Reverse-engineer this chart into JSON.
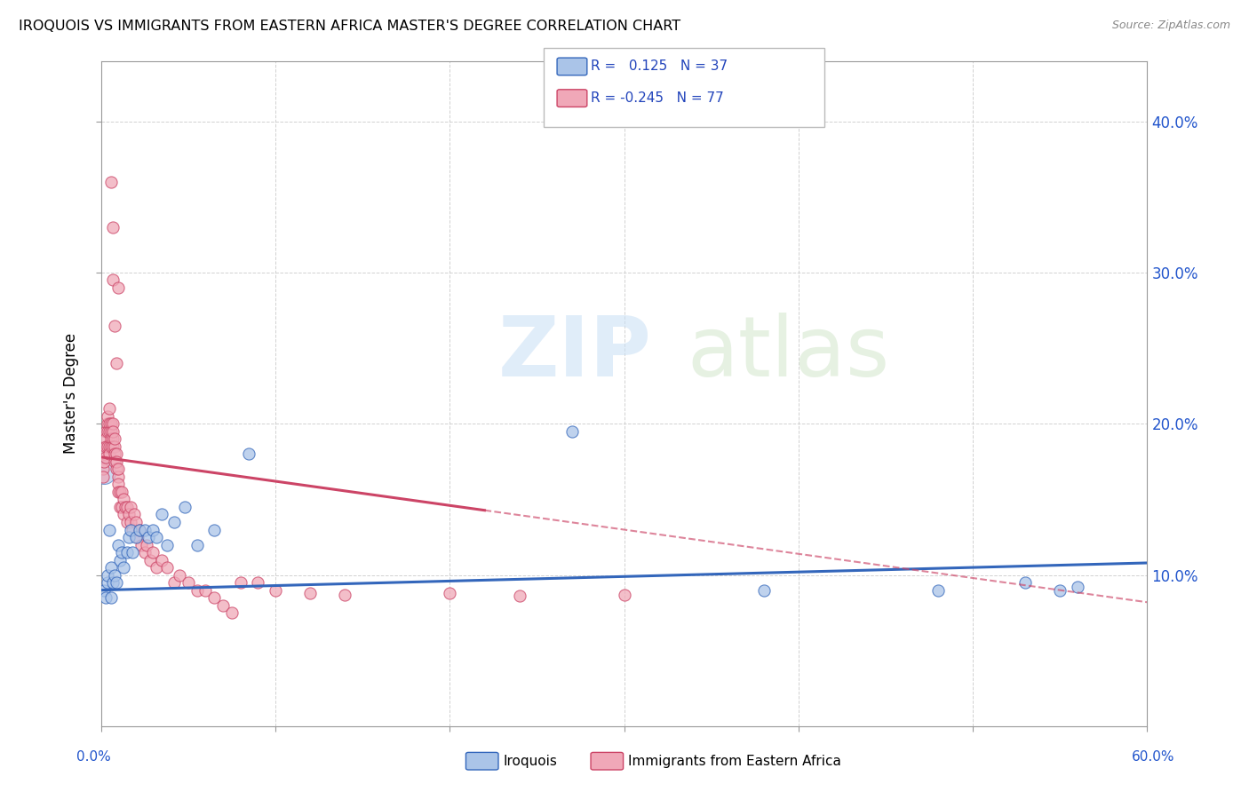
{
  "title": "IROQUOIS VS IMMIGRANTS FROM EASTERN AFRICA MASTER'S DEGREE CORRELATION CHART",
  "source": "Source: ZipAtlas.com",
  "ylabel": "Master's Degree",
  "right_yticks": [
    "10.0%",
    "20.0%",
    "30.0%",
    "40.0%"
  ],
  "right_ytick_vals": [
    0.1,
    0.2,
    0.3,
    0.4
  ],
  "xlim": [
    0.0,
    0.6
  ],
  "ylim": [
    0.0,
    0.44
  ],
  "blue_color": "#aac4e8",
  "pink_color": "#f0a8b8",
  "blue_line_color": "#3366bb",
  "pink_line_color": "#cc4466",
  "blue_scatter_x": [
    0.002,
    0.003,
    0.004,
    0.004,
    0.005,
    0.006,
    0.006,
    0.007,
    0.008,
    0.009,
    0.01,
    0.011,
    0.012,
    0.013,
    0.015,
    0.016,
    0.017,
    0.018,
    0.02,
    0.022,
    0.025,
    0.027,
    0.03,
    0.032,
    0.035,
    0.038,
    0.042,
    0.048,
    0.055,
    0.065,
    0.085,
    0.27,
    0.38,
    0.48,
    0.53,
    0.55,
    0.56
  ],
  "blue_scatter_y": [
    0.09,
    0.085,
    0.095,
    0.1,
    0.13,
    0.105,
    0.085,
    0.095,
    0.1,
    0.095,
    0.12,
    0.11,
    0.115,
    0.105,
    0.115,
    0.125,
    0.13,
    0.115,
    0.125,
    0.13,
    0.13,
    0.125,
    0.13,
    0.125,
    0.14,
    0.12,
    0.135,
    0.145,
    0.12,
    0.13,
    0.18,
    0.195,
    0.09,
    0.09,
    0.095,
    0.09,
    0.092
  ],
  "pink_scatter_x": [
    0.001,
    0.001,
    0.002,
    0.002,
    0.003,
    0.003,
    0.003,
    0.003,
    0.004,
    0.004,
    0.004,
    0.004,
    0.005,
    0.005,
    0.005,
    0.005,
    0.005,
    0.006,
    0.006,
    0.006,
    0.006,
    0.007,
    0.007,
    0.007,
    0.007,
    0.008,
    0.008,
    0.008,
    0.008,
    0.009,
    0.009,
    0.009,
    0.01,
    0.01,
    0.01,
    0.01,
    0.011,
    0.011,
    0.012,
    0.012,
    0.013,
    0.013,
    0.014,
    0.015,
    0.015,
    0.016,
    0.017,
    0.017,
    0.018,
    0.019,
    0.02,
    0.021,
    0.022,
    0.023,
    0.025,
    0.026,
    0.028,
    0.03,
    0.032,
    0.035,
    0.038,
    0.042,
    0.045,
    0.05,
    0.055,
    0.06,
    0.065,
    0.07,
    0.075,
    0.08,
    0.09,
    0.1,
    0.12,
    0.14,
    0.2,
    0.24,
    0.3
  ],
  "pink_scatter_y": [
    0.17,
    0.165,
    0.175,
    0.18,
    0.195,
    0.19,
    0.185,
    0.178,
    0.2,
    0.195,
    0.205,
    0.185,
    0.21,
    0.2,
    0.185,
    0.195,
    0.18,
    0.2,
    0.195,
    0.19,
    0.185,
    0.2,
    0.19,
    0.185,
    0.195,
    0.185,
    0.19,
    0.18,
    0.175,
    0.18,
    0.17,
    0.175,
    0.165,
    0.17,
    0.16,
    0.155,
    0.155,
    0.145,
    0.155,
    0.145,
    0.15,
    0.14,
    0.145,
    0.145,
    0.135,
    0.14,
    0.135,
    0.145,
    0.13,
    0.14,
    0.135,
    0.125,
    0.13,
    0.12,
    0.115,
    0.12,
    0.11,
    0.115,
    0.105,
    0.11,
    0.105,
    0.095,
    0.1,
    0.095,
    0.09,
    0.09,
    0.085,
    0.08,
    0.075,
    0.095,
    0.095,
    0.09,
    0.088,
    0.087,
    0.088,
    0.086,
    0.087
  ],
  "pink_high_x": [
    0.006,
    0.007,
    0.007,
    0.008,
    0.009,
    0.01
  ],
  "pink_high_y": [
    0.36,
    0.33,
    0.295,
    0.265,
    0.24,
    0.29
  ],
  "blue_large_x": [
    0.002
  ],
  "blue_large_y": [
    0.168
  ],
  "blue_large_size": 350
}
